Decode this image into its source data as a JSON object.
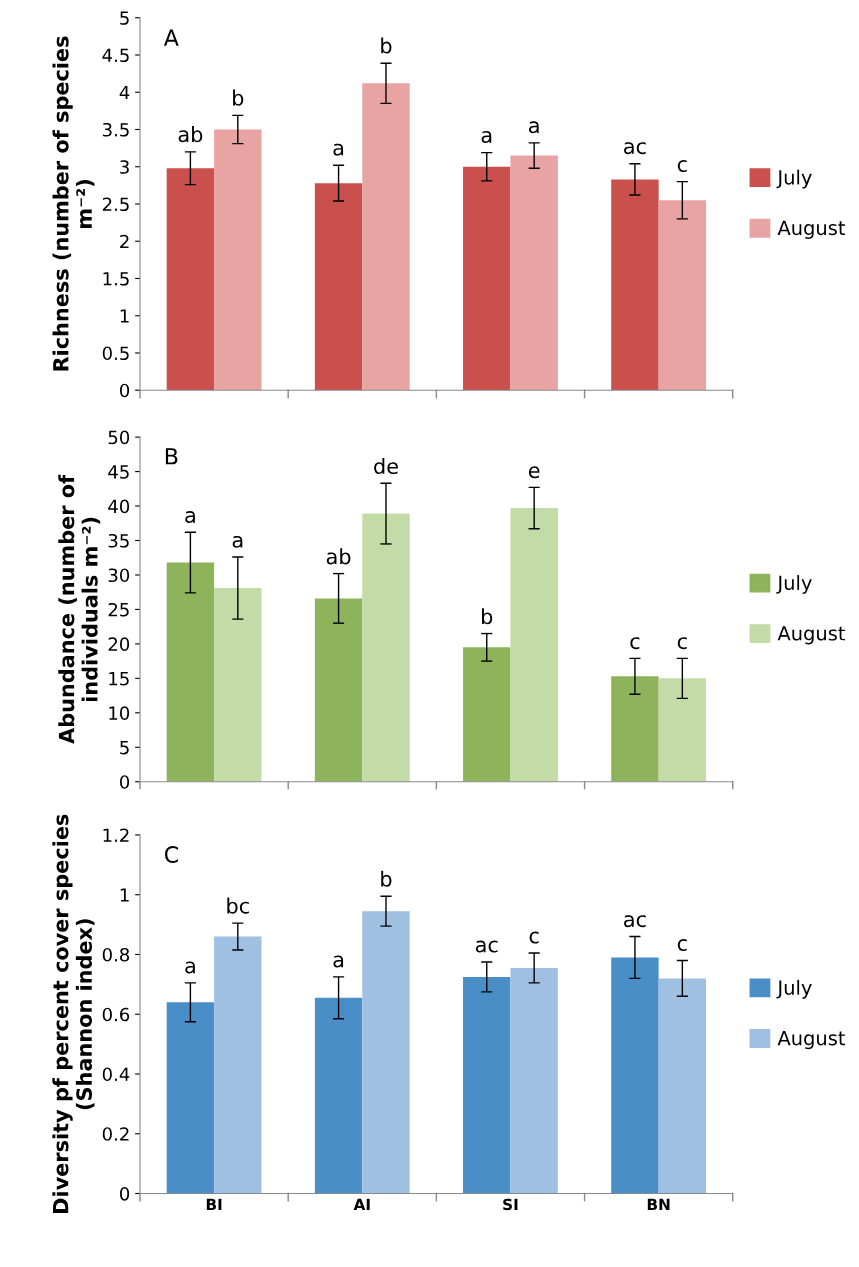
{
  "chart_data": [
    {
      "type": "bar",
      "annotations": [
        "A"
      ],
      "ylabel": "Richness (number of species\nm⁻²)",
      "categories": [
        null,
        null,
        null,
        null
      ],
      "tick_labels": "y",
      "ylim": [
        0,
        5
      ],
      "yticks": [
        0,
        0.5,
        1,
        1.5,
        2,
        2.5,
        3,
        3.5,
        4,
        4.5,
        5
      ],
      "grid": false,
      "legend": "right",
      "series": [
        {
          "name": "July",
          "color": "#c9504c",
          "values": [
            2.98,
            2.78,
            3.0,
            2.83
          ],
          "errors": [
            0.22,
            0.24,
            0.19,
            0.21
          ],
          "value_labels": [
            "ab",
            "a",
            "a",
            "ac"
          ]
        },
        {
          "name": "August",
          "color": "#e8a3a3",
          "values": [
            3.5,
            4.12,
            3.15,
            2.55
          ],
          "errors": [
            0.19,
            0.27,
            0.17,
            0.25
          ],
          "value_labels": [
            "b",
            "b",
            "a",
            "c"
          ]
        }
      ]
    },
    {
      "type": "bar",
      "annotations": [
        "B"
      ],
      "ylabel": "Abundance (number of\nindividuals m⁻²)",
      "categories": [
        null,
        null,
        null,
        null
      ],
      "tick_labels": "y",
      "ylim": [
        0,
        50
      ],
      "yticks": [
        0,
        5,
        10,
        15,
        20,
        25,
        30,
        35,
        40,
        45,
        50
      ],
      "grid": false,
      "legend": "right",
      "series": [
        {
          "name": "July",
          "color": "#8db45a",
          "values": [
            31.8,
            26.6,
            19.5,
            15.3
          ],
          "errors": [
            4.4,
            3.6,
            2.0,
            2.6
          ],
          "value_labels": [
            "a",
            "ab",
            "b",
            "c"
          ]
        },
        {
          "name": "August",
          "color": "#c3dba6",
          "values": [
            28.1,
            38.9,
            39.7,
            15.0
          ],
          "errors": [
            4.5,
            4.4,
            3.0,
            2.9
          ],
          "value_labels": [
            "a",
            "de",
            "e",
            "c"
          ]
        }
      ]
    },
    {
      "type": "bar",
      "annotations": [
        "C"
      ],
      "ylabel": "Diversity pf percent cover species\n(Shannon index)",
      "categories": [
        "BI",
        "AI",
        "SI",
        "BN"
      ],
      "ylim": [
        0,
        1.2
      ],
      "yticks": [
        0,
        0.2,
        0.4,
        0.6,
        0.8,
        1,
        1.2
      ],
      "grid": false,
      "legend": "right",
      "series": [
        {
          "name": "July",
          "color": "#4a8ec8",
          "values": [
            0.64,
            0.655,
            0.725,
            0.79
          ],
          "errors": [
            0.065,
            0.07,
            0.05,
            0.07
          ],
          "value_labels": [
            "a",
            "a",
            "ac",
            "ac"
          ]
        },
        {
          "name": "August",
          "color": "#9fc0e0",
          "values": [
            0.86,
            0.945,
            0.755,
            0.72
          ],
          "errors": [
            0.045,
            0.05,
            0.05,
            0.06
          ],
          "value_labels": [
            "bc",
            "b",
            "c",
            "c"
          ]
        }
      ]
    }
  ]
}
